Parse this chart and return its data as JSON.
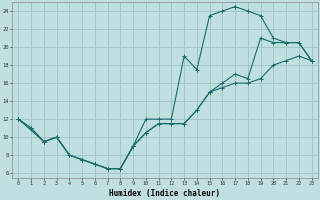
{
  "xlabel": "Humidex (Indice chaleur)",
  "bg_color": "#c0e0e0",
  "grid_color": "#a0c8c8",
  "line_color": "#1a6b6b",
  "xlim": [
    -0.5,
    23.5
  ],
  "ylim": [
    5.5,
    25.0
  ],
  "xticks": [
    0,
    1,
    2,
    3,
    4,
    5,
    6,
    7,
    8,
    9,
    10,
    11,
    12,
    13,
    14,
    15,
    16,
    17,
    18,
    19,
    20,
    21,
    22,
    23
  ],
  "yticks": [
    6,
    8,
    10,
    12,
    14,
    16,
    18,
    20,
    22,
    24
  ],
  "line1_x": [
    0,
    1,
    2,
    3,
    4,
    5,
    6,
    7,
    8,
    9,
    10,
    11,
    12,
    13,
    14,
    15,
    16,
    17,
    18,
    19,
    20,
    21,
    22,
    23
  ],
  "line1_y": [
    12,
    11,
    9.5,
    10,
    8,
    7.5,
    7,
    6.5,
    6.5,
    9,
    12,
    12,
    12,
    19,
    17.5,
    23.5,
    24,
    24.5,
    24,
    23.5,
    21,
    20.5,
    20.5,
    18.5
  ],
  "line2_x": [
    0,
    1,
    2,
    3,
    4,
    5,
    6,
    7,
    8,
    9,
    10,
    11,
    12,
    13,
    14,
    15,
    16,
    17,
    18,
    19,
    20,
    21,
    22,
    23
  ],
  "line2_y": [
    12,
    11,
    9.5,
    10,
    8,
    7.5,
    7,
    6.5,
    6.5,
    9,
    10.5,
    11.5,
    11.5,
    11.5,
    13,
    15,
    15.5,
    16,
    16,
    16.5,
    18,
    18.5,
    19,
    18.5
  ],
  "line3_x": [
    0,
    2,
    3,
    4,
    5,
    6,
    7,
    8,
    9,
    10,
    11,
    12,
    13,
    14,
    15,
    16,
    17,
    18,
    19,
    20,
    21,
    22,
    23
  ],
  "line3_y": [
    12,
    9.5,
    10,
    8,
    7.5,
    7,
    6.5,
    6.5,
    9,
    10.5,
    11.5,
    11.5,
    11.5,
    13,
    15,
    16,
    17,
    16.5,
    21,
    20.5,
    20.5,
    20.5,
    18.5
  ]
}
